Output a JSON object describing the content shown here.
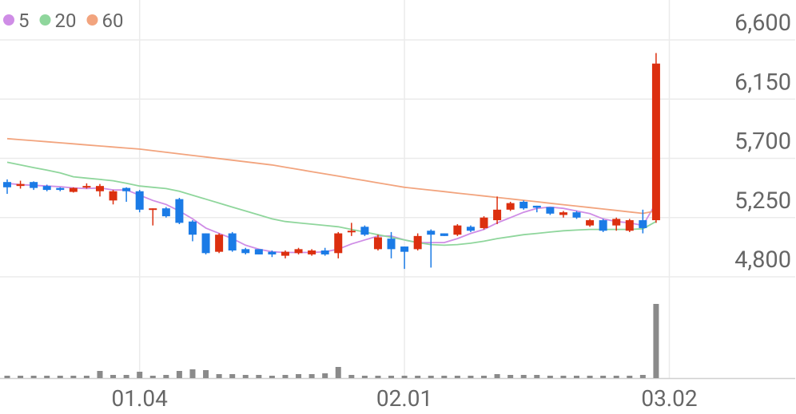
{
  "chart_data": {
    "type": "candlestick",
    "categories": [
      null,
      null,
      null,
      null,
      null,
      null,
      null,
      null,
      null,
      null,
      "01.04",
      null,
      null,
      null,
      null,
      null,
      null,
      null,
      null,
      null,
      null,
      null,
      null,
      null,
      null,
      null,
      null,
      null,
      null,
      null,
      "02.01",
      null,
      null,
      null,
      null,
      null,
      null,
      null,
      null,
      null,
      null,
      null,
      null,
      null,
      null,
      null,
      null,
      null,
      null,
      null,
      "03.02"
    ],
    "open": [
      5520,
      5490,
      5520,
      5490,
      5475,
      5445,
      5480,
      5450,
      5380,
      5475,
      5450,
      5310,
      5320,
      5390,
      5220,
      5130,
      4990,
      5130,
      5010,
      5010,
      4990,
      4960,
      4980,
      4970,
      5000,
      4980,
      5140,
      5180,
      5010,
      5090,
      5030,
      5010,
      5150,
      5130,
      5120,
      5180,
      5170,
      5230,
      5310,
      5370,
      5340,
      5330,
      5270,
      5290,
      5190,
      5230,
      5190,
      5150,
      5230,
      5230,
      null
    ],
    "high": [
      5540,
      5530,
      5525,
      5500,
      5480,
      5480,
      5510,
      5505,
      5460,
      5480,
      5460,
      5320,
      5330,
      5400,
      5230,
      5130,
      5130,
      5140,
      5020,
      5010,
      5000,
      5000,
      5020,
      5010,
      5020,
      5140,
      5210,
      5190,
      5120,
      5140,
      5030,
      5130,
      5160,
      5130,
      5200,
      5190,
      5260,
      5410,
      5370,
      5380,
      5340,
      5330,
      5300,
      5300,
      5240,
      5240,
      5250,
      5240,
      5310,
      6500,
      null
    ],
    "low": [
      5430,
      5470,
      5460,
      5450,
      5450,
      5440,
      5470,
      5410,
      5350,
      5370,
      5290,
      5190,
      5250,
      5200,
      5070,
      4970,
      4980,
      4990,
      4970,
      4970,
      4950,
      4940,
      4970,
      4960,
      4960,
      4940,
      5110,
      5110,
      5000,
      4940,
      4860,
      5000,
      4870,
      5110,
      5110,
      5140,
      5160,
      5200,
      5300,
      5310,
      5290,
      5270,
      5250,
      5240,
      5180,
      5140,
      5150,
      5140,
      5130,
      5210,
      null
    ],
    "close": [
      5480,
      5505,
      5475,
      5460,
      5460,
      5475,
      5490,
      5490,
      5450,
      5450,
      5310,
      5320,
      5260,
      5210,
      5120,
      4980,
      5120,
      5000,
      4980,
      4970,
      4970,
      4990,
      5010,
      5000,
      4970,
      5130,
      5150,
      5120,
      5100,
      5010,
      4990,
      5110,
      5120,
      5110,
      5190,
      5150,
      5250,
      5310,
      5360,
      5320,
      5325,
      5280,
      5290,
      5250,
      5230,
      5150,
      5240,
      5230,
      5170,
      6420,
      null
    ],
    "up_color": "#dc2f0f",
    "down_color": "#1b7be6",
    "series": [
      {
        "name": "5",
        "color": "#cf8de6",
        "values": [
          5510,
          5500,
          5495,
          5490,
          5485,
          5475,
          5470,
          5475,
          5460,
          5460,
          5420,
          5380,
          5350,
          5300,
          5240,
          5170,
          5130,
          5090,
          5040,
          5010,
          4990,
          4985,
          4985,
          4985,
          4990,
          5010,
          5050,
          5080,
          5110,
          5110,
          5080,
          5060,
          5060,
          5060,
          5090,
          5130,
          5160,
          5210,
          5250,
          5290,
          5320,
          5330,
          5320,
          5300,
          5280,
          5240,
          5220,
          5210,
          5190,
          5360,
          null
        ]
      },
      {
        "name": "20",
        "color": "#8fd69c",
        "values": [
          5670,
          5650,
          5630,
          5610,
          5590,
          5560,
          5550,
          5540,
          5530,
          5510,
          5490,
          5480,
          5470,
          5450,
          5420,
          5390,
          5360,
          5330,
          5300,
          5270,
          5240,
          5220,
          5210,
          5200,
          5190,
          5180,
          5160,
          5140,
          5120,
          5100,
          5080,
          5060,
          5045,
          5040,
          5045,
          5055,
          5070,
          5090,
          5105,
          5120,
          5130,
          5140,
          5150,
          5155,
          5160,
          5160,
          5160,
          5160,
          5165,
          5220,
          null
        ]
      },
      {
        "name": "60",
        "color": "#f2a47e",
        "values": [
          5850,
          5842,
          5834,
          5826,
          5818,
          5810,
          5802,
          5794,
          5786,
          5778,
          5770,
          5758,
          5746,
          5734,
          5722,
          5710,
          5698,
          5686,
          5674,
          5662,
          5650,
          5633,
          5616,
          5599,
          5582,
          5565,
          5548,
          5531,
          5514,
          5497,
          5480,
          5469,
          5458,
          5447,
          5436,
          5425,
          5414,
          5403,
          5392,
          5381,
          5370,
          5359,
          5348,
          5337,
          5326,
          5315,
          5304,
          5293,
          5282,
          5300,
          null
        ]
      }
    ],
    "volume": [
      3,
      3,
      3,
      3,
      3,
      3,
      3,
      9,
      4,
      4,
      8,
      3,
      4,
      9,
      11,
      10,
      5,
      5,
      4,
      4,
      3,
      4,
      5,
      5,
      6,
      14,
      4,
      3,
      3,
      3,
      3,
      3,
      3,
      3,
      3,
      3,
      3,
      5,
      4,
      4,
      4,
      3,
      3,
      3,
      3,
      3,
      3,
      3,
      4,
      93,
      null
    ],
    "volume_color": "#8a8a8a",
    "ylim": [
      4800,
      6900
    ],
    "yticks": [
      {
        "value": 4800,
        "label": "4,800"
      },
      {
        "value": 5250,
        "label": "5,250"
      },
      {
        "value": 5700,
        "label": "5,700"
      },
      {
        "value": 6150,
        "label": "6,150"
      },
      {
        "value": 6600,
        "label": "6,600"
      }
    ],
    "grid": true
  }
}
